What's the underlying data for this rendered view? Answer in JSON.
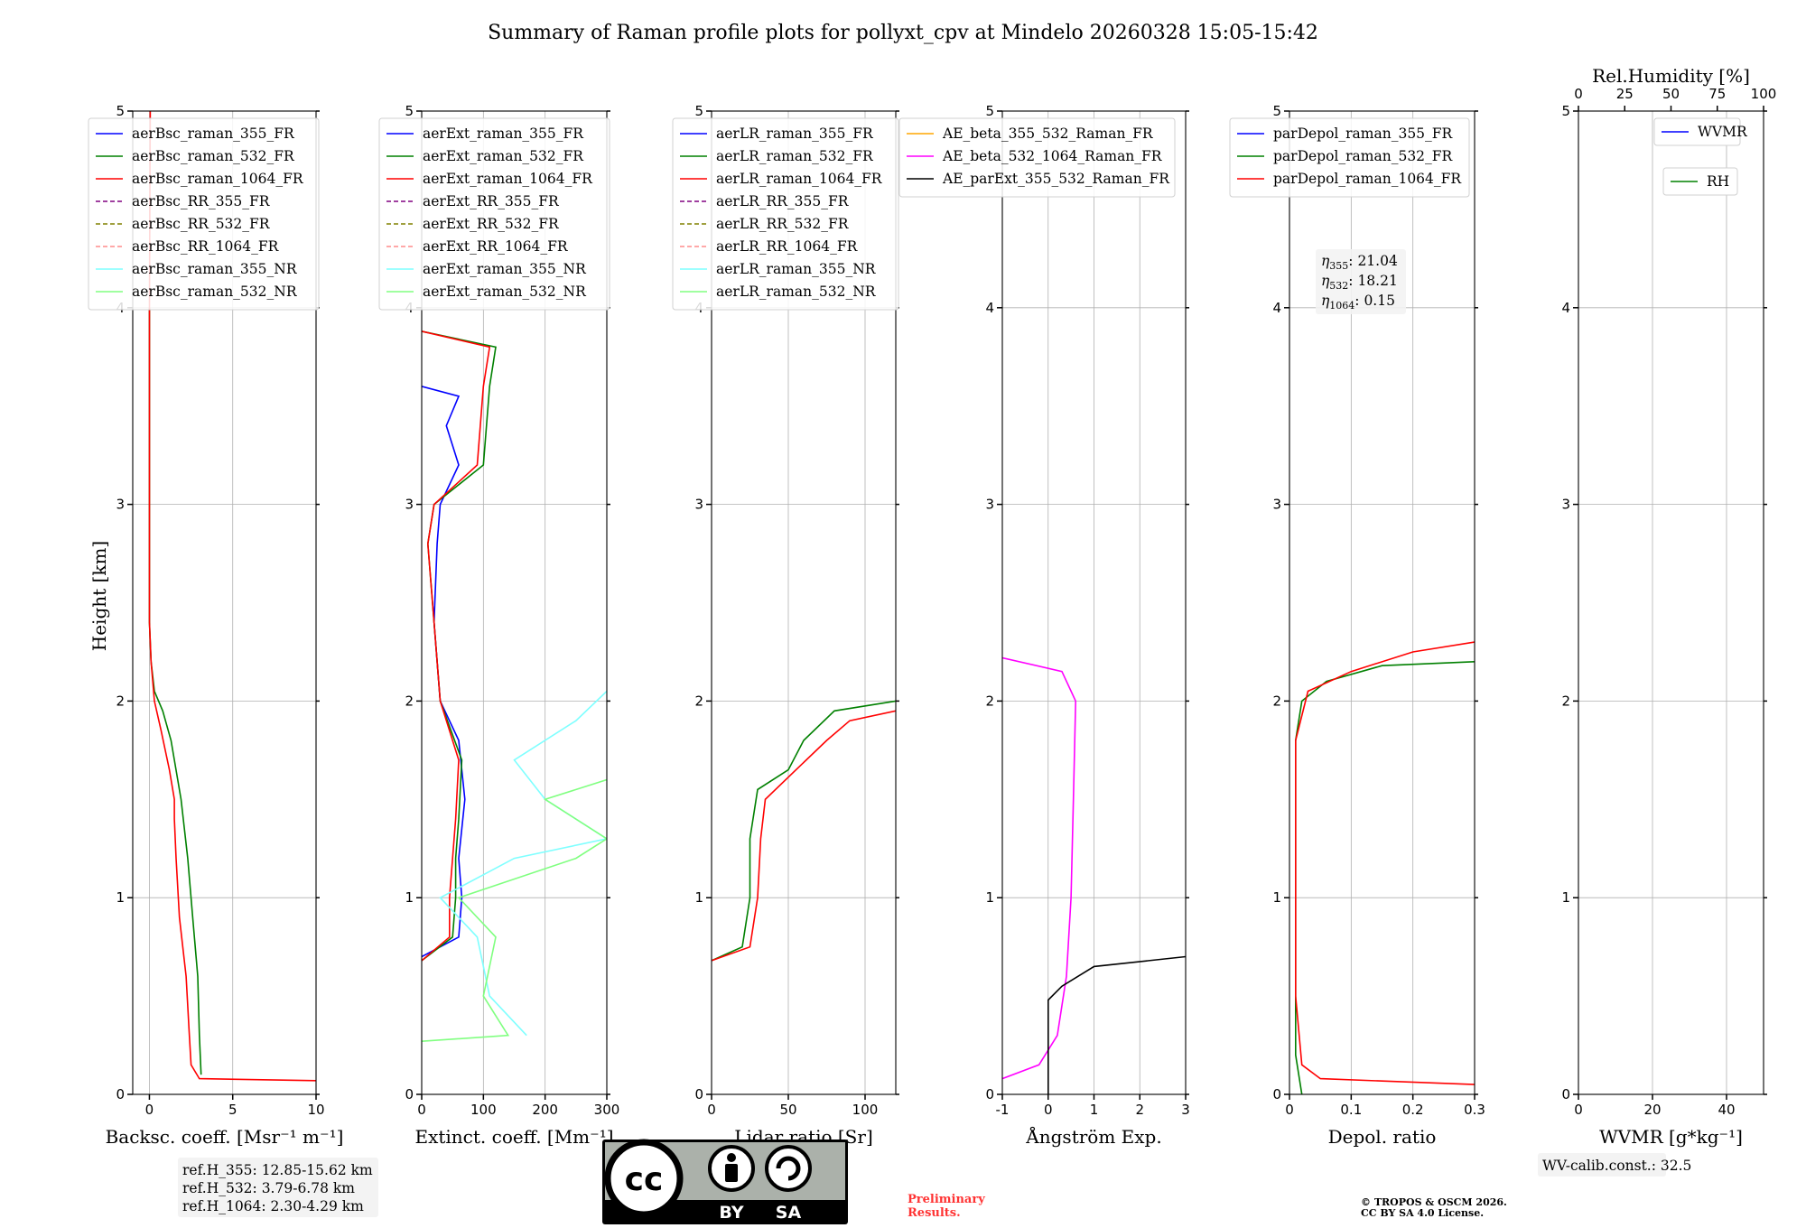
{
  "title": "Summary of Raman profile plots for pollyxt_cpv at Mindelo 20260328 15:05-15:42",
  "ylabel": "Height [km]",
  "chart_data": [
    {
      "type": "line",
      "xlabel": "Backsc. coeff. [Msr⁻¹ m⁻¹]",
      "xlim": [
        -1,
        10
      ],
      "xticks": [
        0,
        5,
        10
      ],
      "ylim": [
        0,
        5
      ],
      "legend": [
        {
          "label": "aerBsc_raman_355_FR",
          "color": "#0000ff",
          "dash": false
        },
        {
          "label": "aerBsc_raman_532_FR",
          "color": "#008000",
          "dash": false
        },
        {
          "label": "aerBsc_raman_1064_FR",
          "color": "#ff0000",
          "dash": false
        },
        {
          "label": "aerBsc_RR_355_FR",
          "color": "#800080",
          "dash": true
        },
        {
          "label": "aerBsc_RR_532_FR",
          "color": "#808000",
          "dash": true
        },
        {
          "label": "aerBsc_RR_1064_FR",
          "color": "#ff8c8c",
          "dash": true
        },
        {
          "label": "aerBsc_raman_355_NR",
          "color": "#7fffff",
          "dash": false
        },
        {
          "label": "aerBsc_raman_532_NR",
          "color": "#80ff80",
          "dash": false
        }
      ],
      "series": [
        {
          "name": "aerBsc_raman_532_FR",
          "color": "#008000",
          "points": [
            [
              3.1,
              0.1
            ],
            [
              3.0,
              0.3
            ],
            [
              2.9,
              0.6
            ],
            [
              2.6,
              0.9
            ],
            [
              2.3,
              1.2
            ],
            [
              1.9,
              1.5
            ],
            [
              1.7,
              1.6
            ],
            [
              1.3,
              1.8
            ],
            [
              0.8,
              1.95
            ],
            [
              0.3,
              2.05
            ],
            [
              0.1,
              2.2
            ],
            [
              0,
              2.4
            ],
            [
              0,
              4.0
            ]
          ]
        },
        {
          "name": "aerBsc_raman_1064_FR",
          "color": "#ff0000",
          "points": [
            [
              10,
              0.07
            ],
            [
              3.0,
              0.08
            ],
            [
              2.5,
              0.15
            ],
            [
              2.4,
              0.3
            ],
            [
              2.2,
              0.6
            ],
            [
              1.8,
              0.9
            ],
            [
              1.6,
              1.2
            ],
            [
              1.5,
              1.4
            ],
            [
              1.5,
              1.5
            ],
            [
              1.2,
              1.65
            ],
            [
              0.7,
              1.85
            ],
            [
              0.3,
              2.0
            ],
            [
              0.1,
              2.2
            ],
            [
              0,
              2.4
            ],
            [
              0,
              4.0
            ],
            [
              0.05,
              5.0
            ]
          ]
        }
      ],
      "notes": [
        "ref.H_355: 12.85-15.62 km",
        "ref.H_532: 3.79-6.78 km",
        "ref.H_1064: 2.30-4.29 km"
      ]
    },
    {
      "type": "line",
      "xlabel": "Extinct. coeff. [Mm⁻¹]",
      "xlim": [
        0,
        300
      ],
      "xticks": [
        0,
        100,
        200,
        300
      ],
      "ylim": [
        0,
        5
      ],
      "legend": [
        {
          "label": "aerExt_raman_355_FR",
          "color": "#0000ff",
          "dash": false
        },
        {
          "label": "aerExt_raman_532_FR",
          "color": "#008000",
          "dash": false
        },
        {
          "label": "aerExt_raman_1064_FR",
          "color": "#ff0000",
          "dash": false
        },
        {
          "label": "aerExt_RR_355_FR",
          "color": "#800080",
          "dash": true
        },
        {
          "label": "aerExt_RR_532_FR",
          "color": "#808000",
          "dash": true
        },
        {
          "label": "aerExt_RR_1064_FR",
          "color": "#ff8c8c",
          "dash": true
        },
        {
          "label": "aerExt_raman_355_NR",
          "color": "#7fffff",
          "dash": false
        },
        {
          "label": "aerExt_raman_532_NR",
          "color": "#80ff80",
          "dash": false
        }
      ],
      "series": [
        {
          "name": "aerExt_raman_355_FR",
          "color": "#0000ff",
          "points": [
            [
              0,
              0.7
            ],
            [
              60,
              0.8
            ],
            [
              65,
              1.0
            ],
            [
              60,
              1.2
            ],
            [
              70,
              1.5
            ],
            [
              60,
              1.8
            ],
            [
              30,
              2.0
            ],
            [
              20,
              2.4
            ],
            [
              25,
              2.8
            ],
            [
              30,
              3.0
            ],
            [
              60,
              3.2
            ],
            [
              40,
              3.4
            ],
            [
              60,
              3.55
            ],
            [
              0,
              3.6
            ]
          ]
        },
        {
          "name": "aerExt_raman_532_FR",
          "color": "#008000",
          "points": [
            [
              0,
              0.68
            ],
            [
              50,
              0.8
            ],
            [
              55,
              1.0
            ],
            [
              55,
              1.2
            ],
            [
              60,
              1.4
            ],
            [
              65,
              1.7
            ],
            [
              30,
              2.0
            ],
            [
              20,
              2.4
            ],
            [
              10,
              2.8
            ],
            [
              20,
              3.0
            ],
            [
              100,
              3.2
            ],
            [
              110,
              3.6
            ],
            [
              120,
              3.8
            ],
            [
              0,
              3.88
            ]
          ]
        },
        {
          "name": "aerExt_raman_1064_FR",
          "color": "#ff0000",
          "points": [
            [
              0,
              0.68
            ],
            [
              45,
              0.8
            ],
            [
              45,
              1.0
            ],
            [
              50,
              1.2
            ],
            [
              55,
              1.4
            ],
            [
              60,
              1.7
            ],
            [
              30,
              2.0
            ],
            [
              20,
              2.4
            ],
            [
              10,
              2.8
            ],
            [
              20,
              3.0
            ],
            [
              90,
              3.2
            ],
            [
              100,
              3.6
            ],
            [
              110,
              3.8
            ],
            [
              0,
              3.88
            ]
          ]
        },
        {
          "name": "aerExt_raman_355_NR",
          "color": "#7fffff",
          "points": [
            [
              170,
              0.3
            ],
            [
              110,
              0.5
            ],
            [
              90,
              0.8
            ],
            [
              30,
              1.0
            ],
            [
              150,
              1.2
            ],
            [
              300,
              1.3
            ],
            [
              200,
              1.5
            ],
            [
              150,
              1.7
            ],
            [
              250,
              1.9
            ],
            [
              300,
              2.05
            ]
          ]
        },
        {
          "name": "aerExt_raman_532_NR",
          "color": "#80ff80",
          "points": [
            [
              0,
              0.27
            ],
            [
              140,
              0.3
            ],
            [
              100,
              0.5
            ],
            [
              120,
              0.8
            ],
            [
              60,
              1.0
            ],
            [
              250,
              1.2
            ],
            [
              300,
              1.3
            ],
            [
              200,
              1.5
            ],
            [
              300,
              1.6
            ]
          ]
        }
      ]
    },
    {
      "type": "line",
      "xlabel": "Lidar ratio [Sr]",
      "xlim": [
        0,
        120
      ],
      "xticks": [
        0,
        50,
        100
      ],
      "ylim": [
        0,
        5
      ],
      "legend": [
        {
          "label": "aerLR_raman_355_FR",
          "color": "#0000ff",
          "dash": false
        },
        {
          "label": "aerLR_raman_532_FR",
          "color": "#008000",
          "dash": false
        },
        {
          "label": "aerLR_raman_1064_FR",
          "color": "#ff0000",
          "dash": false
        },
        {
          "label": "aerLR_RR_355_FR",
          "color": "#800080",
          "dash": true
        },
        {
          "label": "aerLR_RR_532_FR",
          "color": "#808000",
          "dash": true
        },
        {
          "label": "aerLR_RR_1064_FR",
          "color": "#ff8c8c",
          "dash": true
        },
        {
          "label": "aerLR_raman_355_NR",
          "color": "#7fffff",
          "dash": false
        },
        {
          "label": "aerLR_raman_532_NR",
          "color": "#80ff80",
          "dash": false
        }
      ],
      "series": [
        {
          "name": "aerLR_raman_532_FR",
          "color": "#008000",
          "points": [
            [
              0,
              0.68
            ],
            [
              20,
              0.75
            ],
            [
              25,
              1.0
            ],
            [
              25,
              1.3
            ],
            [
              30,
              1.55
            ],
            [
              50,
              1.65
            ],
            [
              60,
              1.8
            ],
            [
              80,
              1.95
            ],
            [
              120,
              2.0
            ]
          ]
        },
        {
          "name": "aerLR_raman_1064_FR",
          "color": "#ff0000",
          "points": [
            [
              0,
              0.68
            ],
            [
              25,
              0.75
            ],
            [
              30,
              1.0
            ],
            [
              32,
              1.3
            ],
            [
              35,
              1.5
            ],
            [
              55,
              1.65
            ],
            [
              75,
              1.8
            ],
            [
              90,
              1.9
            ],
            [
              120,
              1.95
            ]
          ]
        }
      ]
    },
    {
      "type": "line",
      "xlabel": "Ångström Exp.",
      "xlim": [
        -1,
        3
      ],
      "xticks": [
        -1,
        0,
        1,
        2,
        3
      ],
      "ylim": [
        0,
        5
      ],
      "legend": [
        {
          "label": "AE_beta_355_532_Raman_FR",
          "color": "#ffa500",
          "dash": false
        },
        {
          "label": "AE_beta_532_1064_Raman_FR",
          "color": "#ff00ff",
          "dash": false
        },
        {
          "label": "AE_parExt_355_532_Raman_FR",
          "color": "#000000",
          "dash": false
        }
      ],
      "series": [
        {
          "name": "AE_beta_532_1064_Raman_FR",
          "color": "#ff00ff",
          "points": [
            [
              -1,
              0.08
            ],
            [
              -0.2,
              0.15
            ],
            [
              0.2,
              0.3
            ],
            [
              0.4,
              0.6
            ],
            [
              0.5,
              1.0
            ],
            [
              0.55,
              1.5
            ],
            [
              0.6,
              2.0
            ],
            [
              0.3,
              2.15
            ],
            [
              -1,
              2.22
            ]
          ]
        },
        {
          "name": "AE_parExt_355_532_Raman_FR",
          "color": "#000000",
          "points": [
            [
              0,
              0
            ],
            [
              0,
              0.48
            ],
            [
              0.3,
              0.55
            ],
            [
              1,
              0.65
            ],
            [
              3,
              0.7
            ]
          ]
        }
      ]
    },
    {
      "type": "line",
      "xlabel": "Depol. ratio",
      "xlim": [
        0,
        0.3
      ],
      "xticks": [
        0.0,
        0.1,
        0.2,
        0.3
      ],
      "ylim": [
        0,
        5
      ],
      "legend": [
        {
          "label": "parDepol_raman_355_FR",
          "color": "#0000ff",
          "dash": false
        },
        {
          "label": "parDepol_raman_532_FR",
          "color": "#008000",
          "dash": false
        },
        {
          "label": "parDepol_raman_1064_FR",
          "color": "#ff0000",
          "dash": false
        }
      ],
      "series": [
        {
          "name": "parDepol_raman_532_FR",
          "color": "#008000",
          "points": [
            [
              0.02,
              0.0
            ],
            [
              0.01,
              0.2
            ],
            [
              0.01,
              1.0
            ],
            [
              0.01,
              1.8
            ],
            [
              0.02,
              2.0
            ],
            [
              0.06,
              2.1
            ],
            [
              0.15,
              2.18
            ],
            [
              0.3,
              2.2
            ]
          ]
        },
        {
          "name": "parDepol_raman_1064_FR",
          "color": "#ff0000",
          "points": [
            [
              0.3,
              0.05
            ],
            [
              0.05,
              0.08
            ],
            [
              0.02,
              0.15
            ],
            [
              0.01,
              0.5
            ],
            [
              0.01,
              1.8
            ],
            [
              0.03,
              2.05
            ],
            [
              0.1,
              2.15
            ],
            [
              0.2,
              2.25
            ],
            [
              0.3,
              2.3
            ]
          ]
        }
      ],
      "annotations": [
        {
          "sym": "η",
          "sub": "355",
          "text": ": 21.04"
        },
        {
          "sym": "η",
          "sub": "532",
          "text": ": 18.21"
        },
        {
          "sym": "η",
          "sub": "1064",
          "text": ": 0.15"
        }
      ]
    },
    {
      "type": "line",
      "xlabel": "WVMR [g*kg⁻¹]",
      "xlim": [
        0,
        50
      ],
      "xticks": [
        0,
        20,
        40
      ],
      "top_xlabel": "Rel.Humidity [%]",
      "top_xticks": [
        0,
        25,
        50,
        75,
        100
      ],
      "ylim": [
        0,
        5
      ],
      "legend": [
        {
          "label": "WVMR",
          "color": "#0000ff",
          "dash": false
        },
        {
          "label": "RH",
          "color": "#008000",
          "dash": false
        }
      ],
      "series": [],
      "notes": [
        "WV-calib.const.: 32.5"
      ]
    }
  ],
  "license_badge": {
    "cc": "cc",
    "by": "BY",
    "sa": "SA"
  },
  "preliminary": [
    "Preliminary",
    "Results."
  ],
  "copyright": [
    "© TROPOS & OSCM 2026.",
    "CC BY SA 4.0 License."
  ]
}
